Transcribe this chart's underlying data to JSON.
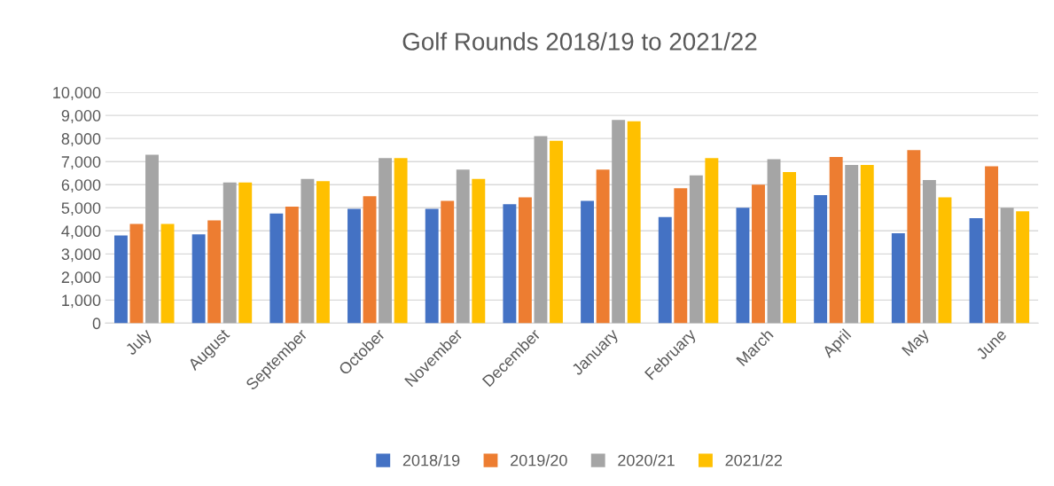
{
  "chart_data": {
    "type": "bar",
    "title": "Golf Rounds 2018/19 to 2021/22",
    "categories": [
      "July",
      "August",
      "September",
      "October",
      "November",
      "December",
      "January",
      "February",
      "March",
      "April",
      "May",
      "June"
    ],
    "series": [
      {
        "name": "2018/19",
        "color": "#4472c4",
        "values": [
          3800,
          3850,
          4750,
          4950,
          4950,
          5150,
          5300,
          4600,
          5000,
          5550,
          3900,
          4550
        ]
      },
      {
        "name": "2019/20",
        "color": "#ed7d31",
        "values": [
          4300,
          4450,
          5050,
          5500,
          5300,
          5450,
          6650,
          5850,
          6000,
          7200,
          7500,
          6800
        ]
      },
      {
        "name": "2020/21",
        "color": "#a5a5a5",
        "values": [
          7300,
          6100,
          6250,
          7150,
          6650,
          8100,
          8800,
          6400,
          7100,
          6850,
          6200,
          5000
        ]
      },
      {
        "name": "2021/22",
        "color": "#ffc000",
        "values": [
          4300,
          6100,
          6150,
          7150,
          6250,
          7900,
          8750,
          7150,
          6550,
          6850,
          5450,
          4850
        ]
      }
    ],
    "ylim": [
      0,
      10000
    ],
    "yticks": [
      {
        "value": 0,
        "label": "0"
      },
      {
        "value": 1000,
        "label": "1,000"
      },
      {
        "value": 2000,
        "label": "2,000"
      },
      {
        "value": 3000,
        "label": "3,000"
      },
      {
        "value": 4000,
        "label": "4,000"
      },
      {
        "value": 5000,
        "label": "5,000"
      },
      {
        "value": 6000,
        "label": "6,000"
      },
      {
        "value": 7000,
        "label": "7,000"
      },
      {
        "value": 8000,
        "label": "8,000"
      },
      {
        "value": 9000,
        "label": "9,000"
      },
      {
        "value": 10000,
        "label": "10,000"
      }
    ],
    "grid": "y",
    "legend": "bottom"
  }
}
